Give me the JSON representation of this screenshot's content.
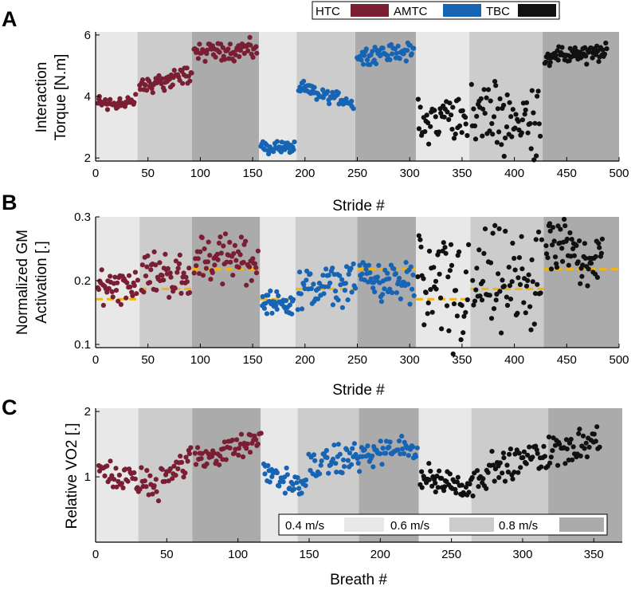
{
  "colors": {
    "HTC": "#7a1e33",
    "AMTC": "#1764b4",
    "TBC": "#111111",
    "ref": "#f2b411",
    "speed_04": "#e8e8e8",
    "speed_06": "#cccccc",
    "speed_08": "#ababab"
  },
  "legends": {
    "conditions": [
      "HTC",
      "AMTC",
      "TBC"
    ],
    "speeds": [
      "0.4 m/s",
      "0.6 m/s",
      "0.8 m/s"
    ]
  },
  "chart_data": [
    {
      "panel": "A",
      "type": "scatter",
      "ylabel": [
        "Interaction",
        "Torque [N.m]"
      ],
      "xlabel": "Stride #",
      "xlim": [
        0,
        500
      ],
      "ylim": [
        1.9,
        6.1
      ],
      "xticks": [
        0,
        50,
        100,
        150,
        200,
        250,
        300,
        350,
        400,
        450,
        500
      ],
      "yticks": [
        2,
        4,
        6
      ],
      "bands": [
        {
          "x0": 0,
          "x1": 40,
          "speed": "0.4 m/s"
        },
        {
          "x0": 40,
          "x1": 92,
          "speed": "0.6 m/s"
        },
        {
          "x0": 92,
          "x1": 156,
          "speed": "0.8 m/s"
        },
        {
          "x0": 156,
          "x1": 192,
          "speed": "0.4 m/s"
        },
        {
          "x0": 192,
          "x1": 248,
          "speed": "0.6 m/s"
        },
        {
          "x0": 248,
          "x1": 306,
          "speed": "0.8 m/s"
        },
        {
          "x0": 306,
          "x1": 357,
          "speed": "0.4 m/s"
        },
        {
          "x0": 357,
          "x1": 427,
          "speed": "0.6 m/s"
        },
        {
          "x0": 427,
          "x1": 500,
          "speed": "0.8 m/s"
        }
      ],
      "segments": [
        {
          "series": "HTC",
          "x0": 2,
          "x1": 38,
          "n": 40,
          "y0": 3.8,
          "y1": 3.8,
          "spread": 0.45
        },
        {
          "series": "HTC",
          "x0": 42,
          "x1": 92,
          "n": 52,
          "y0": 4.3,
          "y1": 4.75,
          "spread": 0.5
        },
        {
          "series": "HTC",
          "x0": 94,
          "x1": 154,
          "n": 62,
          "y0": 5.45,
          "y1": 5.55,
          "spread": 0.55
        },
        {
          "series": "AMTC",
          "x0": 158,
          "x1": 190,
          "n": 38,
          "y0": 2.35,
          "y1": 2.35,
          "spread": 0.35
        },
        {
          "series": "AMTC",
          "x0": 194,
          "x1": 246,
          "n": 56,
          "y0": 4.25,
          "y1": 3.8,
          "spread": 0.4
        },
        {
          "series": "AMTC",
          "x0": 250,
          "x1": 304,
          "n": 58,
          "y0": 5.3,
          "y1": 5.5,
          "spread": 0.45
        },
        {
          "series": "TBC",
          "x0": 308,
          "x1": 355,
          "n": 46,
          "y0": 3.1,
          "y1": 3.5,
          "spread": 1.3
        },
        {
          "series": "TBC",
          "x0": 359,
          "x1": 425,
          "n": 66,
          "y0": 3.4,
          "y1": 3.2,
          "spread": 1.9
        },
        {
          "series": "TBC",
          "x0": 429,
          "x1": 488,
          "n": 66,
          "y0": 5.3,
          "y1": 5.4,
          "spread": 0.5
        }
      ]
    },
    {
      "panel": "B",
      "type": "scatter",
      "ylabel": [
        "Normalized GM",
        "Activation [.]"
      ],
      "xlabel": "Stride #",
      "xlim": [
        0,
        500
      ],
      "ylim": [
        0.095,
        0.3
      ],
      "xticks": [
        0,
        50,
        100,
        150,
        200,
        250,
        300,
        350,
        400,
        450,
        500
      ],
      "yticks": [
        0.1,
        0.2,
        0.3
      ],
      "bands": [
        {
          "x0": 0,
          "x1": 42,
          "speed": "0.4 m/s"
        },
        {
          "x0": 42,
          "x1": 92,
          "speed": "0.6 m/s"
        },
        {
          "x0": 92,
          "x1": 157,
          "speed": "0.8 m/s"
        },
        {
          "x0": 157,
          "x1": 191,
          "speed": "0.4 m/s"
        },
        {
          "x0": 191,
          "x1": 250,
          "speed": "0.6 m/s"
        },
        {
          "x0": 250,
          "x1": 306,
          "speed": "0.8 m/s"
        },
        {
          "x0": 306,
          "x1": 358,
          "speed": "0.4 m/s"
        },
        {
          "x0": 358,
          "x1": 428,
          "speed": "0.6 m/s"
        },
        {
          "x0": 428,
          "x1": 500,
          "speed": "0.8 m/s"
        }
      ],
      "reference_lines": [
        {
          "x0": 0,
          "x1": 42,
          "y": 0.171
        },
        {
          "x0": 42,
          "x1": 92,
          "y": 0.187
        },
        {
          "x0": 92,
          "x1": 157,
          "y": 0.218
        },
        {
          "x0": 157,
          "x1": 191,
          "y": 0.171
        },
        {
          "x0": 191,
          "x1": 250,
          "y": 0.187
        },
        {
          "x0": 250,
          "x1": 306,
          "y": 0.218
        },
        {
          "x0": 306,
          "x1": 358,
          "y": 0.171
        },
        {
          "x0": 358,
          "x1": 428,
          "y": 0.187
        },
        {
          "x0": 428,
          "x1": 500,
          "y": 0.218
        }
      ],
      "segments": [
        {
          "series": "HTC",
          "x0": 2,
          "x1": 40,
          "n": 40,
          "y0": 0.19,
          "y1": 0.2,
          "spread": 0.05
        },
        {
          "series": "HTC",
          "x0": 44,
          "x1": 90,
          "n": 50,
          "y0": 0.215,
          "y1": 0.205,
          "spread": 0.055
        },
        {
          "series": "HTC",
          "x0": 94,
          "x1": 155,
          "n": 62,
          "y0": 0.235,
          "y1": 0.235,
          "spread": 0.06
        },
        {
          "series": "AMTC",
          "x0": 159,
          "x1": 189,
          "n": 38,
          "y0": 0.165,
          "y1": 0.165,
          "spread": 0.03
        },
        {
          "series": "AMTC",
          "x0": 193,
          "x1": 248,
          "n": 56,
          "y0": 0.185,
          "y1": 0.195,
          "spread": 0.05
        },
        {
          "series": "AMTC",
          "x0": 252,
          "x1": 304,
          "n": 58,
          "y0": 0.21,
          "y1": 0.19,
          "spread": 0.05
        },
        {
          "series": "TBC",
          "x0": 308,
          "x1": 356,
          "n": 50,
          "y0": 0.2,
          "y1": 0.17,
          "spread": 0.16
        },
        {
          "series": "TBC",
          "x0": 360,
          "x1": 426,
          "n": 66,
          "y0": 0.2,
          "y1": 0.19,
          "spread": 0.13
        },
        {
          "series": "TBC",
          "x0": 430,
          "x1": 484,
          "n": 62,
          "y0": 0.26,
          "y1": 0.23,
          "spread": 0.07
        }
      ]
    },
    {
      "panel": "C",
      "type": "scatter",
      "ylabel": [
        "Relative VO2 [.]"
      ],
      "xlabel": "Breath #",
      "xlim": [
        0,
        370
      ],
      "ylim": [
        0,
        2.05
      ],
      "xticks": [
        0,
        50,
        100,
        150,
        200,
        250,
        300,
        350
      ],
      "yticks": [
        1,
        2
      ],
      "bands": [
        {
          "x0": 0,
          "x1": 30,
          "speed": "0.4 m/s"
        },
        {
          "x0": 30,
          "x1": 68,
          "speed": "0.6 m/s"
        },
        {
          "x0": 68,
          "x1": 116,
          "speed": "0.8 m/s"
        },
        {
          "x0": 116,
          "x1": 142,
          "speed": "0.4 m/s"
        },
        {
          "x0": 142,
          "x1": 185,
          "speed": "0.6 m/s"
        },
        {
          "x0": 185,
          "x1": 227,
          "speed": "0.8 m/s"
        },
        {
          "x0": 227,
          "x1": 264,
          "speed": "0.4 m/s"
        },
        {
          "x0": 264,
          "x1": 318,
          "speed": "0.6 m/s"
        },
        {
          "x0": 318,
          "x1": 370,
          "speed": "0.8 m/s"
        }
      ],
      "segments": [
        {
          "series": "HTC",
          "x0": 2,
          "x1": 44,
          "n": 50,
          "y0": 1.1,
          "y1": 0.85,
          "spread": 0.35
        },
        {
          "series": "HTC",
          "x0": 46,
          "x1": 67,
          "n": 26,
          "y0": 1.05,
          "y1": 1.25,
          "spread": 0.35
        },
        {
          "series": "HTC",
          "x0": 70,
          "x1": 116,
          "n": 56,
          "y0": 1.25,
          "y1": 1.55,
          "spread": 0.3
        },
        {
          "series": "AMTC",
          "x0": 118,
          "x1": 148,
          "n": 40,
          "y0": 1.1,
          "y1": 0.8,
          "spread": 0.3
        },
        {
          "series": "AMTC",
          "x0": 150,
          "x1": 226,
          "n": 96,
          "y0": 1.2,
          "y1": 1.45,
          "spread": 0.35
        },
        {
          "series": "TBC",
          "x0": 228,
          "x1": 266,
          "n": 52,
          "y0": 1.0,
          "y1": 0.85,
          "spread": 0.35
        },
        {
          "series": "TBC",
          "x0": 268,
          "x1": 354,
          "n": 100,
          "y0": 1.05,
          "y1": 1.6,
          "spread": 0.4
        }
      ]
    }
  ]
}
